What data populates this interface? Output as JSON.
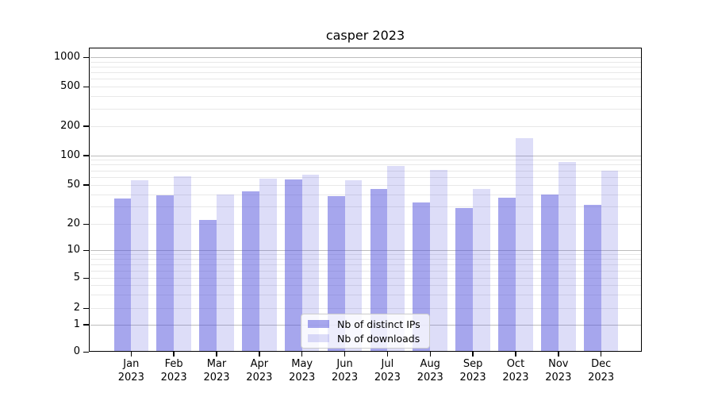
{
  "title": "casper 2023",
  "chart_data": {
    "type": "bar",
    "title": "casper 2023",
    "categories": [
      "Jan 2023",
      "Feb 2023",
      "Mar 2023",
      "Apr 2023",
      "May 2023",
      "Jun 2023",
      "Jul 2023",
      "Aug 2023",
      "Sep 2023",
      "Oct 2023",
      "Nov 2023",
      "Dec 2023"
    ],
    "series": [
      {
        "name": "Nb of distinct IPs",
        "color": "rgba(85,85,221,0.52)",
        "values": [
          36,
          39,
          22,
          43,
          57,
          38,
          45,
          33,
          29,
          37,
          40,
          31
        ]
      },
      {
        "name": "Nb of downloads",
        "color": "rgba(85,85,221,0.20)",
        "values": [
          55,
          61,
          40,
          58,
          63,
          55,
          77,
          71,
          45,
          150,
          85,
          70
        ]
      }
    ],
    "xlabel": "",
    "ylabel": "",
    "yscale": "symlog",
    "ylim": [
      0,
      1000
    ],
    "yticks": [
      0,
      1,
      2,
      5,
      10,
      20,
      50,
      100,
      200,
      500,
      1000
    ],
    "grid": true,
    "legend_position": "lower center"
  },
  "colors": {
    "major_gridline": "#bdbdbd",
    "minor_gridline": "#e8e8e8",
    "axis_spine": "#000000",
    "text": "#000000",
    "background": "#ffffff"
  }
}
